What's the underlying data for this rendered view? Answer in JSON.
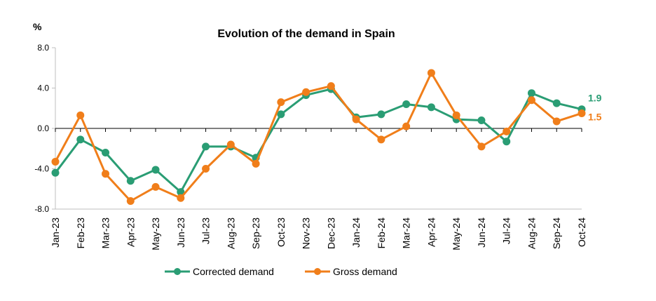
{
  "chart_data": {
    "type": "line",
    "title": "Evolution of the demand in Spain",
    "unit_label": "%",
    "categories": [
      "Jan-23",
      "Feb-23",
      "Mar-23",
      "Apr-23",
      "May-23",
      "Jun-23",
      "Jul-23",
      "Aug-23",
      "Sep-23",
      "Oct-23",
      "Nov-23",
      "Dec-23",
      "Jan-24",
      "Feb-24",
      "Mar-24",
      "Apr-24",
      "May-24",
      "Jun-24",
      "Jul-24",
      "Aug-24",
      "Sep-24",
      "Oct-24"
    ],
    "ylim": [
      -8,
      8
    ],
    "yticks": [
      {
        "value": 8,
        "label": "8.0"
      },
      {
        "value": 4,
        "label": "4.0"
      },
      {
        "value": 0,
        "label": "0.0"
      },
      {
        "value": -4,
        "label": "-4.0"
      },
      {
        "value": -8,
        "label": "-8.0"
      }
    ],
    "legend_position": "bottom",
    "series": [
      {
        "name": "Corrected demand",
        "color": "#2a9d74",
        "values": [
          -4.4,
          -1.1,
          -2.4,
          -5.2,
          -4.1,
          -6.3,
          -1.8,
          -1.8,
          -2.9,
          1.4,
          3.3,
          3.9,
          1.1,
          1.4,
          2.4,
          2.1,
          0.9,
          0.8,
          -1.3,
          3.5,
          2.5,
          1.9
        ],
        "end_label": "1.9"
      },
      {
        "name": "Gross demand",
        "color": "#f07e1a",
        "values": [
          -3.3,
          1.3,
          -4.5,
          -7.2,
          -5.8,
          -6.9,
          -4.0,
          -1.6,
          -3.5,
          2.6,
          3.6,
          4.2,
          0.9,
          -1.1,
          0.2,
          5.5,
          1.3,
          -1.8,
          -0.3,
          2.8,
          0.7,
          1.5
        ],
        "end_label": "1.5"
      }
    ]
  }
}
